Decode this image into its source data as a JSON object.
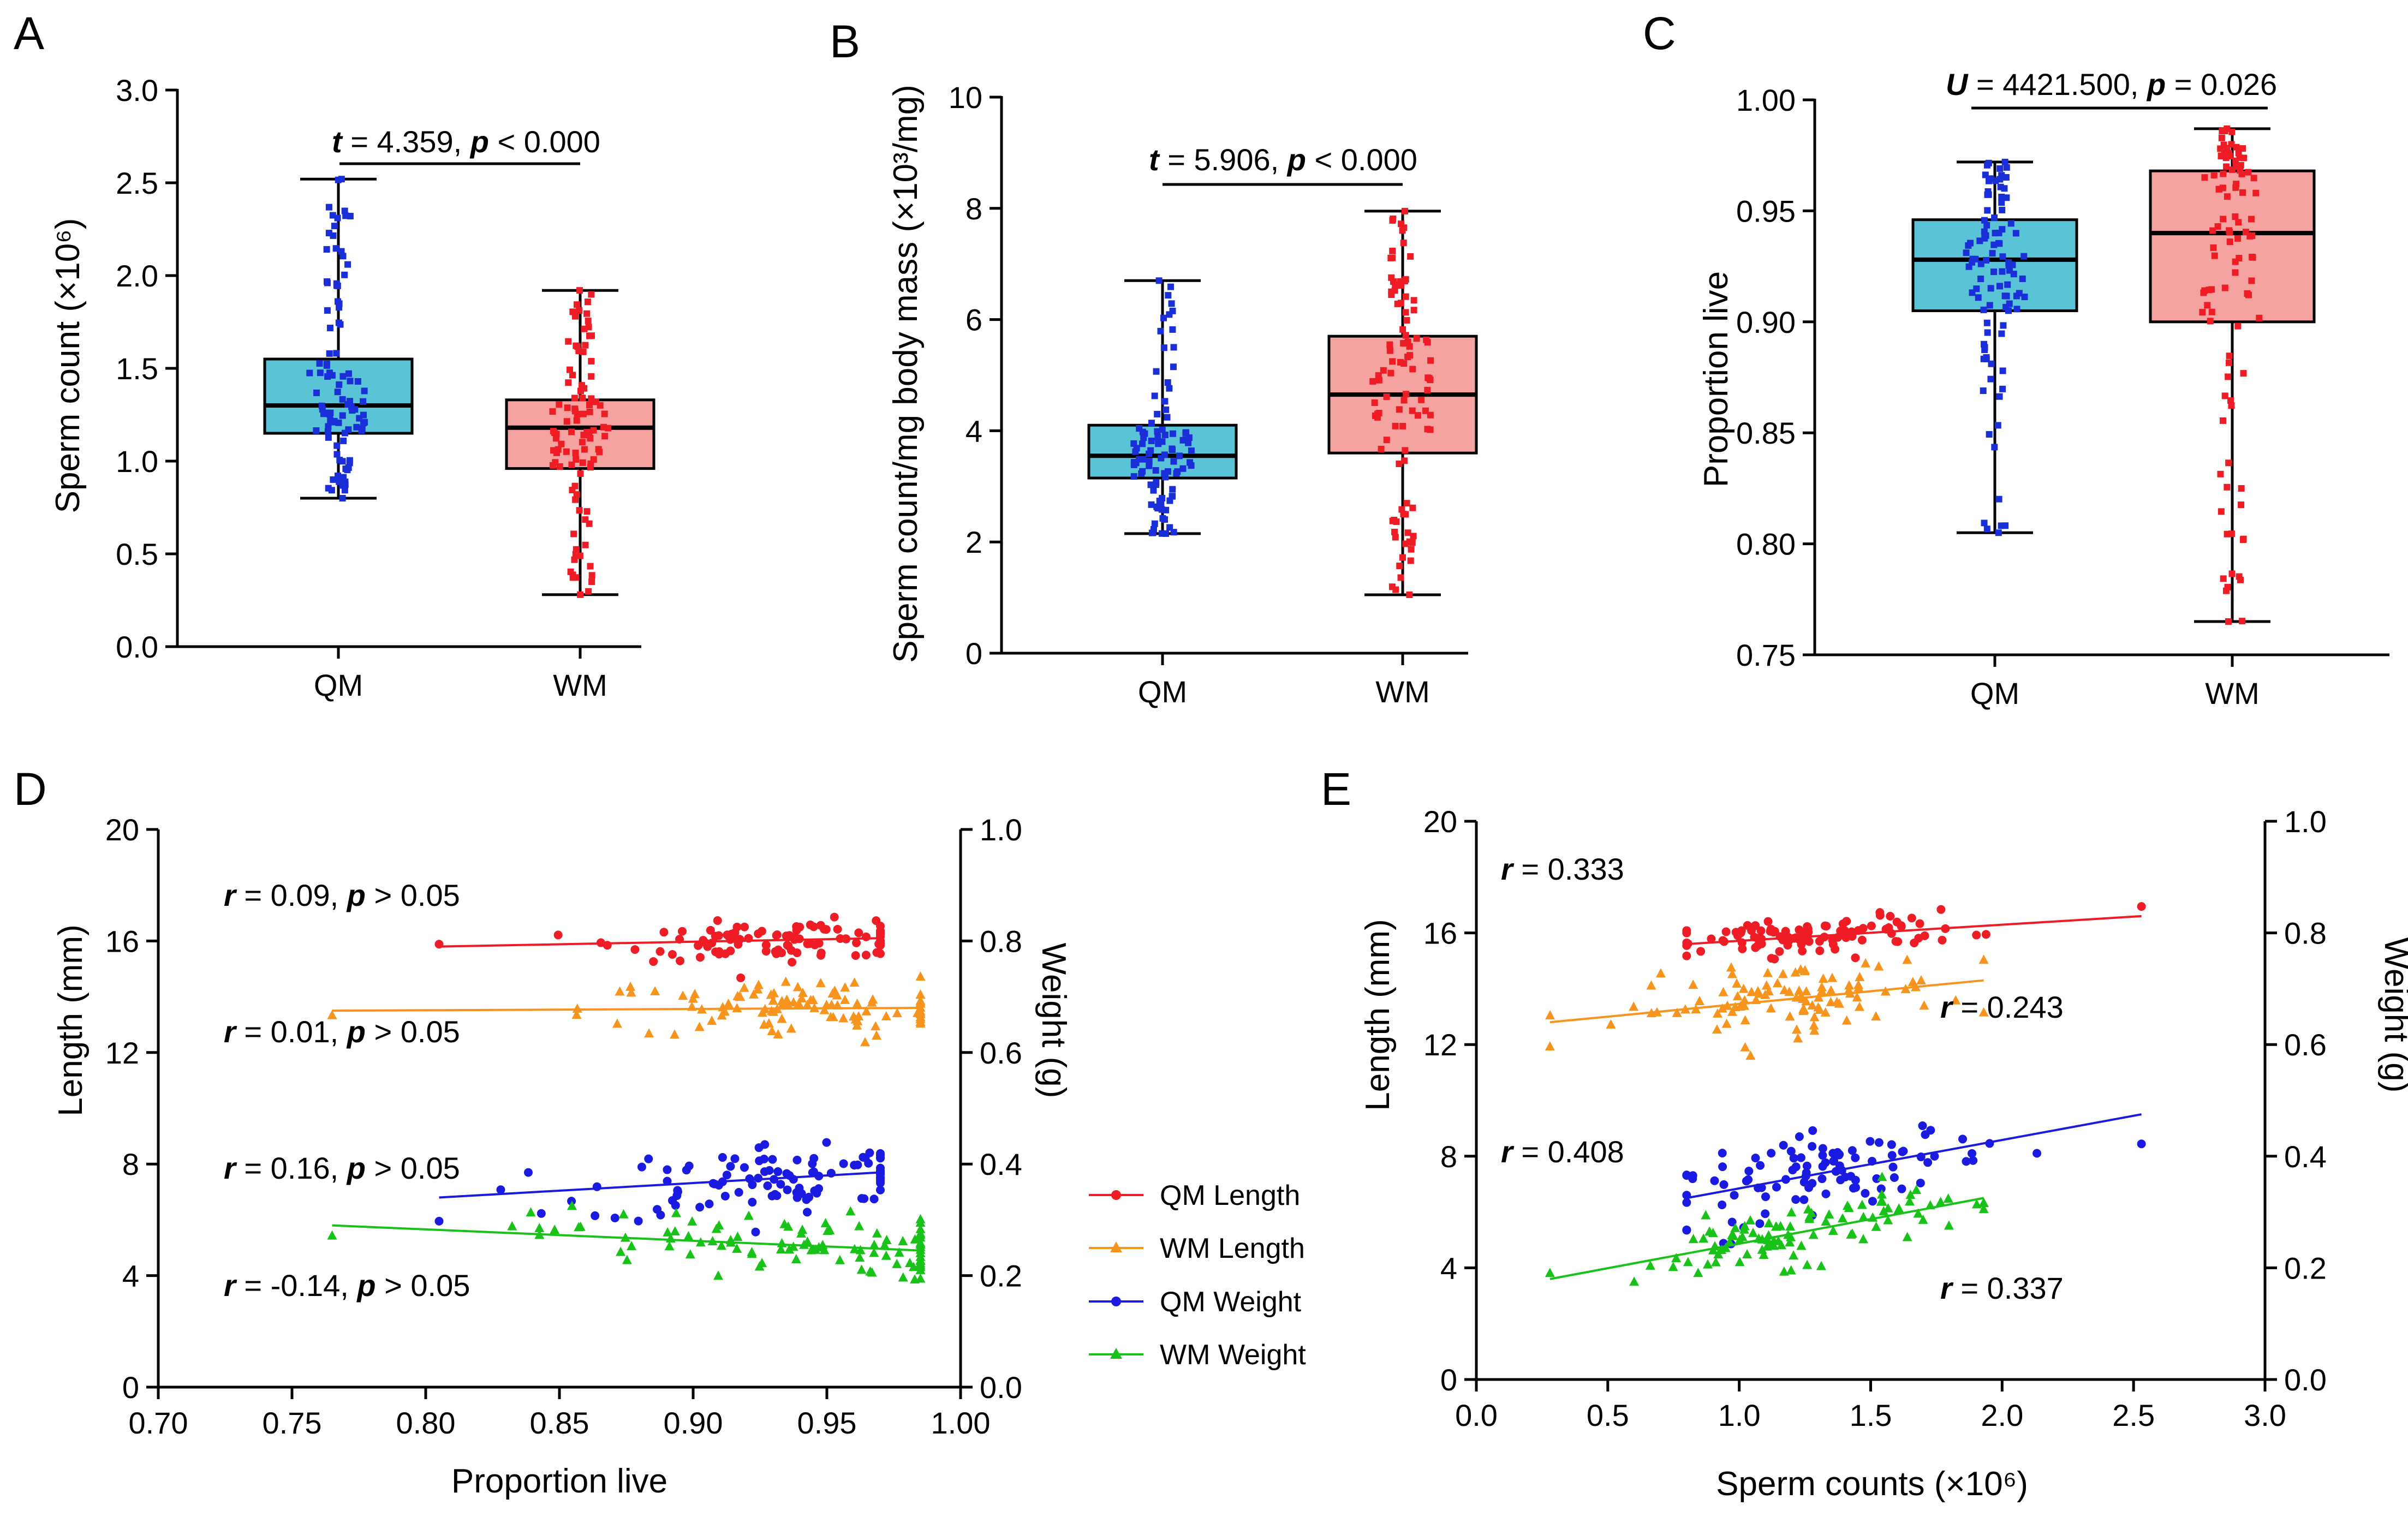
{
  "colors": {
    "qm_box": "#5bc3d6",
    "wm_box": "#f4a3a0",
    "qm_points": "#1a2fd8",
    "wm_points": "#ee1c24",
    "qm_length": "#ee1c24",
    "wm_length": "#f7941d",
    "qm_weight": "#1a1ae0",
    "wm_weight": "#19c219"
  },
  "icons": {
    "circle": "circle-marker-icon",
    "triangle": "triangle-marker-icon"
  },
  "chart_data": [
    {
      "id": "A",
      "panel_letter": "A",
      "type": "box",
      "ylabel": "Sperm count (×10⁶)",
      "ylim": [
        0,
        3.0
      ],
      "yticks": [
        "0.0",
        "0.5",
        "1.0",
        "1.5",
        "2.0",
        "2.5",
        "3.0"
      ],
      "yticks_num": [
        0,
        0.5,
        1.0,
        1.5,
        2.0,
        2.5,
        3.0
      ],
      "categories": [
        "QM",
        "WM"
      ],
      "boxes": [
        {
          "name": "QM",
          "min": 0.8,
          "q1": 1.15,
          "median": 1.3,
          "q3": 1.55,
          "max": 2.52,
          "n": 100
        },
        {
          "name": "WM",
          "min": 0.28,
          "q1": 0.96,
          "median": 1.18,
          "q3": 1.33,
          "max": 1.92,
          "n": 100
        }
      ],
      "stat": {
        "sym": "t",
        "rest": " = 4.359,  ",
        "psym": "p",
        "prest": " < 0.000"
      }
    },
    {
      "id": "B",
      "panel_letter": "B",
      "type": "box",
      "ylabel": "Sperm count/mg body mass (×10³/mg)",
      "ylim": [
        0,
        10
      ],
      "yticks": [
        "0",
        "2",
        "4",
        "6",
        "8",
        "10"
      ],
      "yticks_num": [
        0,
        2,
        4,
        6,
        8,
        10
      ],
      "categories": [
        "QM",
        "WM"
      ],
      "boxes": [
        {
          "name": "QM",
          "min": 2.15,
          "q1": 3.15,
          "median": 3.55,
          "q3": 4.1,
          "max": 6.7,
          "n": 100
        },
        {
          "name": "WM",
          "min": 1.05,
          "q1": 3.6,
          "median": 4.65,
          "q3": 5.7,
          "max": 7.95,
          "n": 100
        }
      ],
      "stat": {
        "sym": "t",
        "rest": " = 5.906, ",
        "psym": "p",
        "prest": " < 0.000"
      }
    },
    {
      "id": "C",
      "panel_letter": "C",
      "type": "box",
      "ylabel": "Proportion live",
      "ylim": [
        0.75,
        1.0
      ],
      "yticks": [
        "0.75",
        "0.80",
        "0.85",
        "0.90",
        "0.95",
        "1.00"
      ],
      "yticks_num": [
        0.75,
        0.8,
        0.85,
        0.9,
        0.95,
        1.0
      ],
      "categories": [
        "QM",
        "WM"
      ],
      "boxes": [
        {
          "name": "QM",
          "min": 0.805,
          "q1": 0.905,
          "median": 0.928,
          "q3": 0.946,
          "max": 0.972,
          "n": 100
        },
        {
          "name": "WM",
          "min": 0.765,
          "q1": 0.9,
          "median": 0.94,
          "q3": 0.968,
          "max": 0.987,
          "n": 100
        }
      ],
      "stat": {
        "sym": "U",
        "rest": " = 4421.500,  ",
        "psym": "p",
        "prest": " = 0.026"
      }
    },
    {
      "id": "D",
      "panel_letter": "D",
      "type": "scatter",
      "xlabel": "Proportion live",
      "ylabel": "Length (mm)",
      "y2label": "Weight (g)",
      "xlim": [
        0.7,
        1.0
      ],
      "xticks": [
        "0.70",
        "0.75",
        "0.80",
        "0.85",
        "0.90",
        "0.95",
        "1.00"
      ],
      "xticks_num": [
        0.7,
        0.75,
        0.8,
        0.85,
        0.9,
        0.95,
        1.0
      ],
      "ylim": [
        0,
        20
      ],
      "yticks": [
        "0",
        "4",
        "8",
        "12",
        "16",
        "20"
      ],
      "yticks_num": [
        0,
        4,
        8,
        12,
        16,
        20
      ],
      "y2lim": [
        0,
        1.0
      ],
      "y2ticks": [
        "0.0",
        "0.2",
        "0.4",
        "0.6",
        "0.8",
        "1.0"
      ],
      "y2ticks_num": [
        0,
        0.2,
        0.4,
        0.6,
        0.8,
        1.0
      ],
      "series": [
        {
          "name": "QM Length",
          "marker": "circle",
          "color": "#ee1c24",
          "xrange": [
            0.805,
            0.97
          ],
          "fit": [
            15.8,
            16.1
          ],
          "center": 16.0,
          "spread": 0.6,
          "xc": 0.935,
          "xs": 0.03
        },
        {
          "name": "WM Length",
          "marker": "triangle",
          "color": "#f7941d",
          "xrange": [
            0.765,
            0.985
          ],
          "fit": [
            13.5,
            13.6
          ],
          "center": 13.4,
          "spread": 1.0,
          "xc": 0.94,
          "xs": 0.04
        },
        {
          "name": "QM Weight",
          "marker": "circle",
          "color": "#1a1ae0",
          "xrange": [
            0.805,
            0.97
          ],
          "fit": [
            0.34,
            0.385
          ],
          "center": 0.37,
          "spread": 0.06,
          "xc": 0.93,
          "xs": 0.035
        },
        {
          "name": "WM Weight",
          "marker": "triangle",
          "color": "#19c219",
          "xrange": [
            0.765,
            0.985
          ],
          "fit": [
            0.29,
            0.245
          ],
          "center": 0.25,
          "spread": 0.05,
          "xc": 0.93,
          "xs": 0.045
        }
      ],
      "annotations": [
        {
          "rsym": "r",
          "rrest": " = 0.09, ",
          "psym": "p",
          "prest": " > 0.05"
        },
        {
          "rsym": "r",
          "rrest": " = 0.01, ",
          "psym": "p",
          "prest": " > 0.05"
        },
        {
          "rsym": "r",
          "rrest": " = 0.16, ",
          "psym": "p",
          "prest": " > 0.05"
        },
        {
          "rsym": "r",
          "rrest": " = -0.14, ",
          "psym": "p",
          "prest": " > 0.05"
        }
      ],
      "legend": [
        "QM Length",
        "WM Length",
        "QM Weight",
        "WM Weight"
      ]
    },
    {
      "id": "E",
      "panel_letter": "E",
      "type": "scatter",
      "xlabel": "Sperm counts (×10⁶)",
      "ylabel": "Length (mm)",
      "y2label": "Weight (g)",
      "xlim": [
        0,
        3.0
      ],
      "xticks": [
        "0.0",
        "0.5",
        "1.0",
        "1.5",
        "2.0",
        "2.5",
        "3.0"
      ],
      "xticks_num": [
        0,
        0.5,
        1.0,
        1.5,
        2.0,
        2.5,
        3.0
      ],
      "ylim": [
        0,
        20
      ],
      "yticks": [
        "0",
        "4",
        "8",
        "12",
        "16",
        "20"
      ],
      "yticks_num": [
        0,
        4,
        8,
        12,
        16,
        20
      ],
      "y2lim": [
        0,
        1.0
      ],
      "y2ticks": [
        "0.0",
        "0.2",
        "0.4",
        "0.6",
        "0.8",
        "1.0"
      ],
      "y2ticks_num": [
        0,
        0.2,
        0.4,
        0.6,
        0.8,
        1.0
      ],
      "series": [
        {
          "name": "QM Length",
          "marker": "circle",
          "color": "#ee1c24",
          "xrange": [
            0.8,
            2.53
          ],
          "fit": [
            15.6,
            16.6
          ],
          "center": 16.0,
          "spread": 0.6,
          "xc": 1.3,
          "xs": 0.28
        },
        {
          "name": "WM Length",
          "marker": "triangle",
          "color": "#f7941d",
          "xrange": [
            0.28,
            1.93
          ],
          "fit": [
            12.8,
            14.3
          ],
          "center": 13.4,
          "spread": 1.1,
          "xc": 1.18,
          "xs": 0.3
        },
        {
          "name": "QM Weight",
          "marker": "circle",
          "color": "#1a1ae0",
          "xrange": [
            0.8,
            2.53
          ],
          "fit": [
            0.325,
            0.475
          ],
          "center": 0.37,
          "spread": 0.06,
          "xc": 1.35,
          "xs": 0.3
        },
        {
          "name": "WM Weight",
          "marker": "triangle",
          "color": "#19c219",
          "xrange": [
            0.28,
            1.93
          ],
          "fit": [
            0.18,
            0.325
          ],
          "center": 0.25,
          "spread": 0.05,
          "xc": 1.2,
          "xs": 0.3
        }
      ],
      "annotations": [
        {
          "rsym": "r",
          "rrest": " = 0.333"
        },
        {
          "rsym": "r",
          "rrest": " = 0.243"
        },
        {
          "rsym": "r",
          "rrest": " = 0.408"
        },
        {
          "rsym": "r",
          "rrest": " = 0.337"
        }
      ]
    }
  ]
}
